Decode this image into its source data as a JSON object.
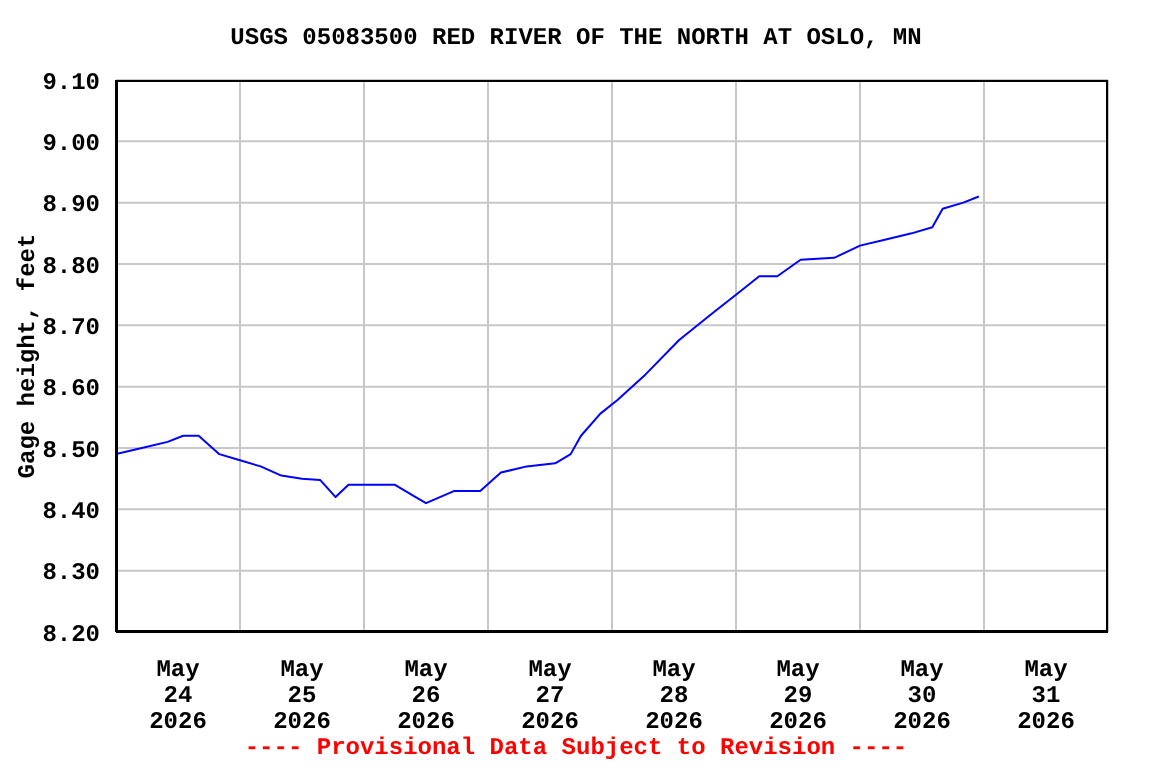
{
  "chart_data": {
    "type": "line",
    "title": "USGS 05083500 RED RIVER OF THE NORTH AT OSLO, MN",
    "ylabel": "Gage height, feet",
    "annotations": [
      "---- Provisional Data Subject to Revision ----"
    ],
    "x": [
      "2026-05-24T00:00",
      "2026-05-24T05:00",
      "2026-05-24T10:00",
      "2026-05-24T13:00",
      "2026-05-24T16:00",
      "2026-05-24T20:00",
      "2026-05-25T00:00",
      "2026-05-25T04:00",
      "2026-05-25T08:00",
      "2026-05-25T12:00",
      "2026-05-25T15:30",
      "2026-05-25T18:30",
      "2026-05-25T21:00",
      "2026-05-26T00:30",
      "2026-05-26T06:00",
      "2026-05-26T10:00",
      "2026-05-26T12:00",
      "2026-05-26T17:30",
      "2026-05-26T22:30",
      "2026-05-27T02:30",
      "2026-05-27T07:30",
      "2026-05-27T13:00",
      "2026-05-27T16:00",
      "2026-05-27T18:00",
      "2026-05-27T21:45",
      "2026-05-28T01:00",
      "2026-05-28T06:30",
      "2026-05-28T13:00",
      "2026-05-28T19:30",
      "2026-05-29T00:00",
      "2026-05-29T04:30",
      "2026-05-29T08:00",
      "2026-05-29T12:30",
      "2026-05-29T19:00",
      "2026-05-30T00:00",
      "2026-05-30T05:00",
      "2026-05-30T10:00",
      "2026-05-30T14:00",
      "2026-05-30T16:00",
      "2026-05-30T20:00",
      "2026-05-30T23:00"
    ],
    "series": [
      {
        "color": "#0000ff",
        "values": [
          8.49,
          8.5,
          8.51,
          8.52,
          8.52,
          8.49,
          8.48,
          8.47,
          8.455,
          8.45,
          8.448,
          8.42,
          8.44,
          8.44,
          8.44,
          8.42,
          8.41,
          8.43,
          8.43,
          8.46,
          8.47,
          8.475,
          8.49,
          8.52,
          8.556,
          8.578,
          8.62,
          8.676,
          8.72,
          8.75,
          8.78,
          8.78,
          8.807,
          8.81,
          8.83,
          8.84,
          8.85,
          8.86,
          8.89,
          8.9,
          8.91
        ]
      }
    ],
    "xlim": [
      "2026-05-24T00:00",
      "2026-06-01T00:00"
    ],
    "xticks": [
      {
        "value": "2026-05-24T00:00",
        "label": null
      },
      {
        "value": "2026-05-24T12:00",
        "label": "May\n24\n2026"
      },
      {
        "value": "2026-05-25T00:00",
        "label": null
      },
      {
        "value": "2026-05-25T12:00",
        "label": "May\n25\n2026"
      },
      {
        "value": "2026-05-26T00:00",
        "label": null
      },
      {
        "value": "2026-05-26T12:00",
        "label": "May\n26\n2026"
      },
      {
        "value": "2026-05-27T00:00",
        "label": null
      },
      {
        "value": "2026-05-27T12:00",
        "label": "May\n27\n2026"
      },
      {
        "value": "2026-05-28T00:00",
        "label": null
      },
      {
        "value": "2026-05-28T12:00",
        "label": "May\n28\n2026"
      },
      {
        "value": "2026-05-29T00:00",
        "label": null
      },
      {
        "value": "2026-05-29T12:00",
        "label": "May\n29\n2026"
      },
      {
        "value": "2026-05-30T00:00",
        "label": null
      },
      {
        "value": "2026-05-30T12:00",
        "label": "May\n30\n2026"
      },
      {
        "value": "2026-05-31T00:00",
        "label": null
      },
      {
        "value": "2026-05-31T12:00",
        "label": "May\n31\n2026"
      },
      {
        "value": "2026-06-01T00:00",
        "label": null
      }
    ],
    "ylim": [
      8.2,
      9.1
    ],
    "yticks": [
      {
        "value": 8.2,
        "label": "8.20"
      },
      {
        "value": 8.3,
        "label": "8.30"
      },
      {
        "value": 8.4,
        "label": "8.40"
      },
      {
        "value": 8.5,
        "label": "8.50"
      },
      {
        "value": 8.6,
        "label": "8.60"
      },
      {
        "value": 8.7,
        "label": "8.70"
      },
      {
        "value": 8.8,
        "label": "8.80"
      },
      {
        "value": 8.9,
        "label": "8.90"
      },
      {
        "value": 9.0,
        "label": "9.00"
      },
      {
        "value": 9.1,
        "label": "9.10"
      }
    ],
    "grid": true
  }
}
